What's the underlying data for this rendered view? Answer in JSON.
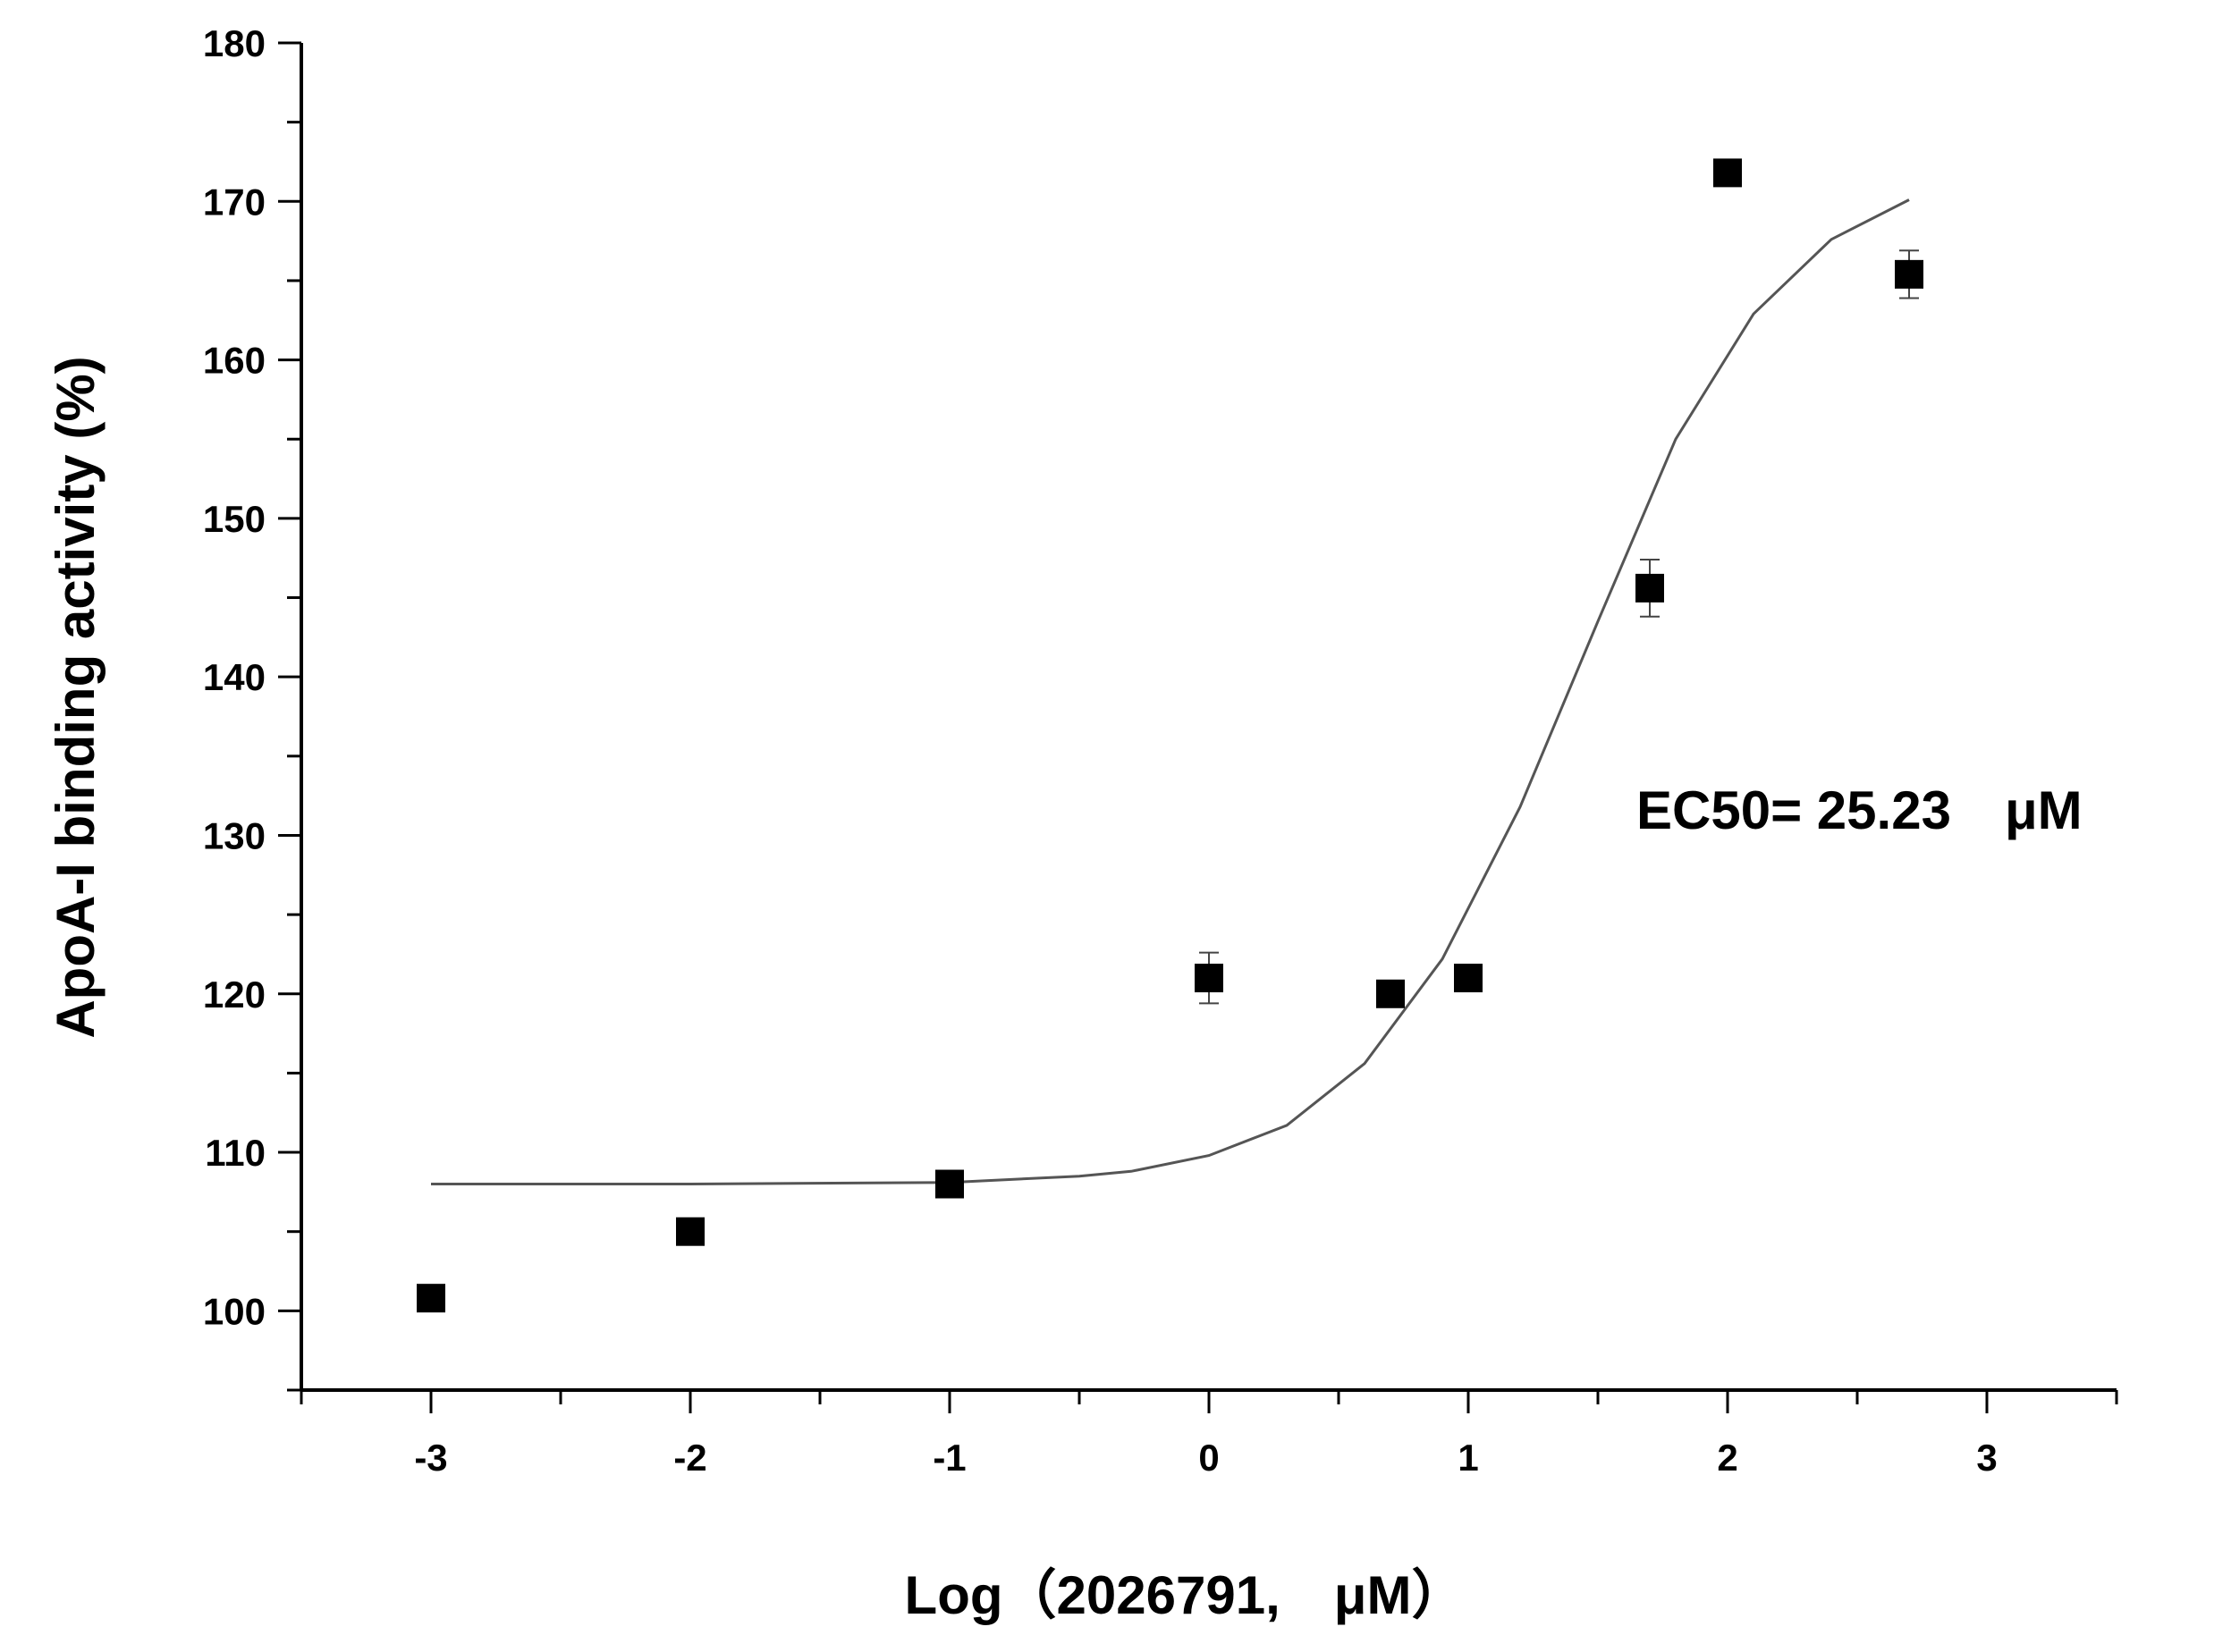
{
  "chart_data": {
    "type": "scatter",
    "xlabel": "Log（2026791,　μM）",
    "ylabel": "ApoA-I binding activity (%)",
    "xlim": [
      -3.5,
      3.5
    ],
    "ylim": [
      95,
      180
    ],
    "x_ticks": [
      "-3",
      "-2",
      "-1",
      "0",
      "1",
      "2",
      "3"
    ],
    "y_ticks": [
      "100",
      "110",
      "120",
      "130",
      "140",
      "150",
      "160",
      "170",
      "180"
    ],
    "annotation": "EC50=  25.23　μM",
    "grid": false,
    "legend": "none",
    "points": [
      {
        "x": -3.0,
        "y": 100.8,
        "err": 0.5
      },
      {
        "x": -2.0,
        "y": 105.0,
        "err": 0.5
      },
      {
        "x": -1.0,
        "y": 108.0,
        "err": 0.5
      },
      {
        "x": 0.0,
        "y": 121.0,
        "err": 1.6
      },
      {
        "x": 0.7,
        "y": 120.0,
        "err": 0.6
      },
      {
        "x": 1.0,
        "y": 121.0,
        "err": 0.8
      },
      {
        "x": 1.7,
        "y": 145.6,
        "err": 1.8
      },
      {
        "x": 2.0,
        "y": 171.8,
        "err": 0.8
      },
      {
        "x": 2.7,
        "y": 165.4,
        "err": 1.5
      }
    ],
    "fit_curve": [
      {
        "x": -3.0,
        "y": 108.0
      },
      {
        "x": -2.0,
        "y": 108.0
      },
      {
        "x": -1.0,
        "y": 108.1
      },
      {
        "x": -0.5,
        "y": 108.5
      },
      {
        "x": -0.3,
        "y": 108.8
      },
      {
        "x": 0.0,
        "y": 109.8
      },
      {
        "x": 0.3,
        "y": 111.7
      },
      {
        "x": 0.6,
        "y": 115.6
      },
      {
        "x": 0.9,
        "y": 122.2
      },
      {
        "x": 1.2,
        "y": 131.8
      },
      {
        "x": 1.5,
        "y": 143.5
      },
      {
        "x": 1.8,
        "y": 155.0
      },
      {
        "x": 2.1,
        "y": 162.9
      },
      {
        "x": 2.4,
        "y": 167.6
      },
      {
        "x": 2.7,
        "y": 170.1
      }
    ],
    "colors": {
      "marker": "#000000",
      "line": "#555555",
      "axis": "#000000"
    }
  }
}
